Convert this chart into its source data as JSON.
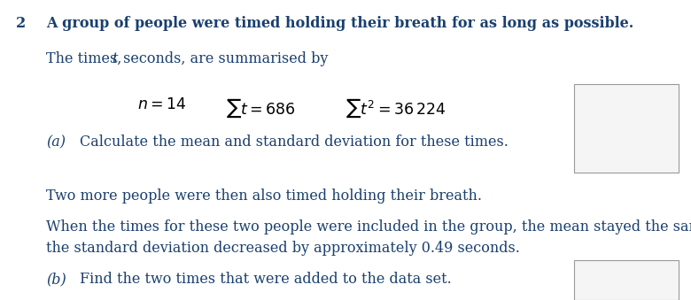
{
  "background_color": "#ffffff",
  "blue_color": "#1a3f6f",
  "black_color": "#000000",
  "question_number": "2",
  "line1": "A group of people were timed holding their breath for as long as possible.",
  "line2_pre": "The times, ",
  "line2_t": "t",
  "line2_post": " seconds, are summarised by",
  "part_a_label": "(a)",
  "part_a_text": "Calculate the mean and standard deviation for these times.",
  "line_two_more": "Two more people were then also timed holding their breath.",
  "line_when1": "When the times for these two people were included in the group, the mean stayed the same and",
  "line_when2": "the standard deviation decreased by approximately 0.49 seconds.",
  "part_b_label": "(b)",
  "part_b_text": "Find the two times that were added to the data set.",
  "font_size": 11.5,
  "font_size_formula": 12.5
}
